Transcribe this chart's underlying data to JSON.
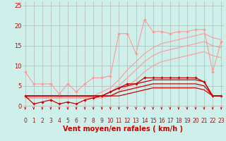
{
  "background_color": "#cff0ea",
  "grid_color": "#aaaaaa",
  "xlabel": "Vent moyen/en rafales ( km/h )",
  "x_ticks": [
    0,
    1,
    2,
    3,
    4,
    5,
    6,
    7,
    8,
    9,
    10,
    11,
    12,
    13,
    14,
    15,
    16,
    17,
    18,
    19,
    20,
    21,
    22,
    23
  ],
  "ylim": [
    -1,
    26
  ],
  "xlim": [
    -0.3,
    23.3
  ],
  "y_ticks": [
    0,
    5,
    10,
    15,
    20,
    25
  ],
  "lines": [
    {
      "x": [
        0,
        1,
        2,
        3,
        4,
        5,
        6,
        7,
        8,
        9,
        10,
        11,
        12,
        13,
        14,
        15,
        16,
        17,
        18,
        19,
        20,
        21,
        22,
        23
      ],
      "y": [
        8.5,
        5.5,
        5.5,
        5.5,
        3.0,
        5.5,
        3.5,
        5.5,
        7.0,
        7.0,
        7.5,
        18.0,
        18.0,
        13.0,
        21.5,
        18.5,
        18.5,
        18.0,
        18.5,
        18.5,
        19.0,
        19.0,
        8.5,
        16.0
      ],
      "color": "#ff9999",
      "lw": 0.8,
      "marker": "D",
      "ms": 2.0
    },
    {
      "x": [
        0,
        1,
        2,
        3,
        4,
        5,
        6,
        7,
        8,
        9,
        10,
        11,
        12,
        13,
        14,
        15,
        16,
        17,
        18,
        19,
        20,
        21,
        22,
        23
      ],
      "y": [
        2.0,
        2.0,
        2.0,
        2.0,
        2.0,
        2.0,
        2.0,
        2.0,
        2.5,
        3.5,
        4.5,
        6.5,
        9.0,
        11.0,
        13.0,
        14.5,
        15.5,
        16.0,
        16.5,
        17.0,
        17.5,
        18.0,
        17.0,
        16.5
      ],
      "color": "#ff9999",
      "lw": 0.8,
      "marker": null,
      "ms": 0
    },
    {
      "x": [
        0,
        1,
        2,
        3,
        4,
        5,
        6,
        7,
        8,
        9,
        10,
        11,
        12,
        13,
        14,
        15,
        16,
        17,
        18,
        19,
        20,
        21,
        22,
        23
      ],
      "y": [
        2.0,
        2.0,
        2.0,
        2.0,
        2.0,
        2.0,
        2.0,
        2.0,
        2.0,
        2.5,
        3.5,
        5.0,
        7.0,
        9.0,
        11.0,
        12.5,
        13.5,
        14.0,
        14.5,
        15.0,
        15.5,
        16.0,
        15.0,
        14.5
      ],
      "color": "#ff9999",
      "lw": 0.8,
      "marker": null,
      "ms": 0
    },
    {
      "x": [
        0,
        1,
        2,
        3,
        4,
        5,
        6,
        7,
        8,
        9,
        10,
        11,
        12,
        13,
        14,
        15,
        16,
        17,
        18,
        19,
        20,
        21,
        22,
        23
      ],
      "y": [
        2.0,
        2.0,
        2.0,
        2.0,
        2.0,
        2.0,
        2.0,
        2.0,
        2.0,
        2.0,
        2.5,
        3.5,
        5.0,
        6.5,
        8.5,
        10.0,
        11.0,
        11.5,
        12.0,
        12.5,
        13.0,
        13.5,
        12.5,
        12.0
      ],
      "color": "#ff9999",
      "lw": 0.8,
      "marker": null,
      "ms": 0
    },
    {
      "x": [
        0,
        1,
        2,
        3,
        4,
        5,
        6,
        7,
        8,
        9,
        10,
        11,
        12,
        13,
        14,
        15,
        16,
        17,
        18,
        19,
        20,
        21,
        22,
        23
      ],
      "y": [
        2.5,
        0.5,
        1.0,
        1.5,
        0.5,
        1.0,
        0.5,
        1.5,
        2.0,
        2.5,
        3.5,
        4.5,
        5.5,
        5.5,
        7.0,
        7.0,
        7.0,
        7.0,
        7.0,
        7.0,
        7.0,
        6.0,
        2.5,
        2.5
      ],
      "color": "#cc0000",
      "lw": 0.9,
      "marker": "D",
      "ms": 1.8
    },
    {
      "x": [
        0,
        1,
        2,
        3,
        4,
        5,
        6,
        7,
        8,
        9,
        10,
        11,
        12,
        13,
        14,
        15,
        16,
        17,
        18,
        19,
        20,
        21,
        22,
        23
      ],
      "y": [
        2.5,
        2.5,
        2.5,
        2.5,
        2.5,
        2.5,
        2.5,
        2.5,
        2.5,
        2.5,
        3.5,
        4.5,
        5.0,
        5.5,
        6.0,
        6.5,
        6.5,
        6.5,
        6.5,
        6.5,
        6.5,
        6.0,
        2.5,
        2.5
      ],
      "color": "#cc0000",
      "lw": 0.9,
      "marker": null,
      "ms": 0
    },
    {
      "x": [
        0,
        1,
        2,
        3,
        4,
        5,
        6,
        7,
        8,
        9,
        10,
        11,
        12,
        13,
        14,
        15,
        16,
        17,
        18,
        19,
        20,
        21,
        22,
        23
      ],
      "y": [
        2.5,
        2.5,
        2.5,
        2.5,
        2.5,
        2.5,
        2.5,
        2.5,
        2.5,
        2.5,
        2.5,
        3.5,
        4.0,
        4.5,
        5.0,
        5.5,
        5.5,
        5.5,
        5.5,
        5.5,
        5.5,
        5.0,
        2.5,
        2.5
      ],
      "color": "#cc0000",
      "lw": 0.9,
      "marker": null,
      "ms": 0
    },
    {
      "x": [
        0,
        1,
        2,
        3,
        4,
        5,
        6,
        7,
        8,
        9,
        10,
        11,
        12,
        13,
        14,
        15,
        16,
        17,
        18,
        19,
        20,
        21,
        22,
        23
      ],
      "y": [
        2.5,
        2.5,
        2.5,
        2.5,
        2.5,
        2.5,
        2.5,
        2.5,
        2.5,
        2.5,
        2.5,
        2.5,
        3.0,
        3.5,
        4.0,
        4.5,
        4.5,
        4.5,
        4.5,
        4.5,
        4.5,
        4.0,
        2.5,
        2.5
      ],
      "color": "#cc0000",
      "lw": 0.9,
      "marker": null,
      "ms": 0
    }
  ],
  "arrow_color": "#cc0000",
  "tick_label_color": "#cc0000",
  "tick_label_fontsize": 5.5,
  "xlabel_fontsize": 7.0,
  "xlabel_color": "#cc0000",
  "ylabel_fontsize": 6.0,
  "ylabel_color": "#cc0000"
}
